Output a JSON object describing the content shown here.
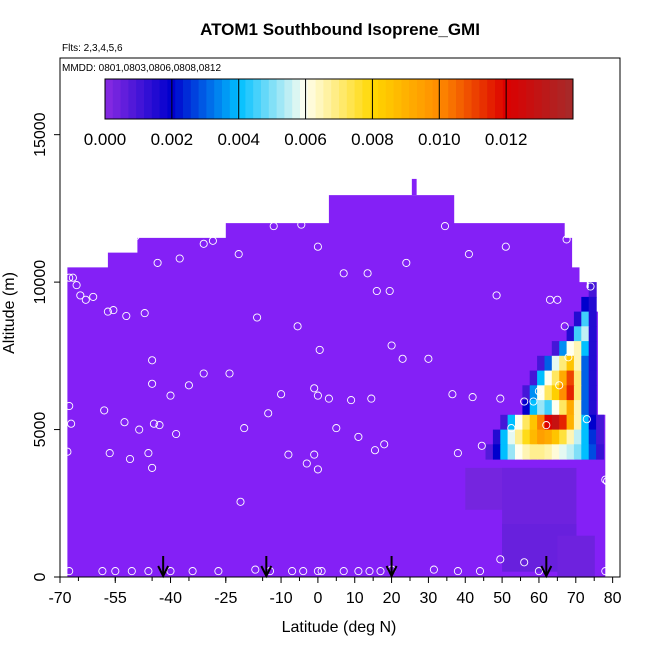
{
  "chart_data": {
    "type": "heatmap",
    "title": "ATOM1 Southbound Isoprene_GMI",
    "flights_note": "Flts: 2,3,4,5,6",
    "dates_note": "MMDD: 0801,0803,0806,0808,0812",
    "xlabel": "Latitude (deg N)",
    "ylabel": "Altitude (m)",
    "xlim": [
      -70,
      82
    ],
    "ylim": [
      0,
      17600
    ],
    "x_ticks": [
      -70,
      -55,
      -40,
      -25,
      -10,
      0,
      10,
      20,
      30,
      40,
      50,
      60,
      70,
      80
    ],
    "x_tick_labels": [
      "-70",
      "-55",
      "-40",
      "-25",
      "-10",
      "0",
      "10",
      "20",
      "30",
      "40",
      "50",
      "60",
      "70",
      "80"
    ],
    "y_ticks": [
      0,
      5000,
      10000,
      15000
    ],
    "y_tick_labels": [
      "0",
      "5000",
      "10000",
      "15000"
    ],
    "colorbar": {
      "min": 0,
      "max": 0.014,
      "ticks": [
        0,
        0.002,
        0.004,
        0.006,
        0.008,
        0.01,
        0.012
      ],
      "tick_labels": [
        "0.000",
        "0.002",
        "0.004",
        "0.006",
        "0.008",
        "0.010",
        "0.012"
      ],
      "colors": [
        "#8a2be2",
        "#0000cd",
        "#00bfff",
        "#fffff0",
        "#ffd700",
        "#ff8c00",
        "#dc0000",
        "#a52a2a"
      ]
    },
    "background_color": "#8420f6",
    "domain_envelope": [
      [
        -68,
        10500
      ],
      [
        -57,
        10500
      ],
      [
        -57,
        11000
      ],
      [
        -49,
        11000
      ],
      [
        -49,
        11500
      ],
      [
        -25,
        11500
      ],
      [
        -25,
        12000
      ],
      [
        3,
        12000
      ],
      [
        3,
        12950
      ],
      [
        37,
        12950
      ],
      [
        37,
        12000
      ],
      [
        67,
        12000
      ],
      [
        67,
        11500
      ],
      [
        69,
        11500
      ],
      [
        69,
        10500
      ],
      [
        71,
        10500
      ],
      [
        71,
        10000
      ],
      [
        73,
        10000
      ],
      [
        73,
        9800
      ],
      [
        74,
        9800
      ],
      [
        74,
        9000
      ],
      [
        76,
        9000
      ],
      [
        76,
        5500
      ],
      [
        78,
        5500
      ],
      [
        78,
        0
      ],
      [
        -68,
        0
      ]
    ],
    "plume_cells": [
      {
        "x": 74.5,
        "y": 9750,
        "v": 0.001
      },
      {
        "x": 72.5,
        "y": 9250,
        "v": 0.002
      },
      {
        "x": 74.5,
        "y": 9250,
        "v": 0.0015
      },
      {
        "x": 70.5,
        "y": 8750,
        "v": 0.0015
      },
      {
        "x": 72.5,
        "y": 8750,
        "v": 0.0045
      },
      {
        "x": 74.5,
        "y": 8750,
        "v": 0.0015
      },
      {
        "x": 68.5,
        "y": 8250,
        "v": 0.0015
      },
      {
        "x": 70.5,
        "y": 8250,
        "v": 0.0045
      },
      {
        "x": 72.5,
        "y": 8250,
        "v": 0.0055
      },
      {
        "x": 74.5,
        "y": 8250,
        "v": 0.0015
      },
      {
        "x": 64.5,
        "y": 7750,
        "v": 0.001
      },
      {
        "x": 66.5,
        "y": 7750,
        "v": 0.0035
      },
      {
        "x": 68.5,
        "y": 7750,
        "v": 0.006
      },
      {
        "x": 70.5,
        "y": 7750,
        "v": 0.0065
      },
      {
        "x": 72.5,
        "y": 7750,
        "v": 0.004
      },
      {
        "x": 74.5,
        "y": 7750,
        "v": 0.0015
      },
      {
        "x": 60.5,
        "y": 7250,
        "v": 0.001
      },
      {
        "x": 62.5,
        "y": 7250,
        "v": 0.003
      },
      {
        "x": 64.5,
        "y": 7250,
        "v": 0.0058
      },
      {
        "x": 66.5,
        "y": 7250,
        "v": 0.007
      },
      {
        "x": 68.5,
        "y": 7250,
        "v": 0.0085
      },
      {
        "x": 70.5,
        "y": 7250,
        "v": 0.0065
      },
      {
        "x": 72.5,
        "y": 7250,
        "v": 0.003
      },
      {
        "x": 74.5,
        "y": 7250,
        "v": 0.0015
      },
      {
        "x": 58.5,
        "y": 6750,
        "v": 0.001
      },
      {
        "x": 60.5,
        "y": 6750,
        "v": 0.004
      },
      {
        "x": 62.5,
        "y": 6750,
        "v": 0.006
      },
      {
        "x": 64.5,
        "y": 6750,
        "v": 0.0072
      },
      {
        "x": 66.5,
        "y": 6750,
        "v": 0.0092
      },
      {
        "x": 68.5,
        "y": 6750,
        "v": 0.011
      },
      {
        "x": 70.5,
        "y": 6750,
        "v": 0.007
      },
      {
        "x": 72.5,
        "y": 6750,
        "v": 0.003
      },
      {
        "x": 74.5,
        "y": 6750,
        "v": 0.0015
      },
      {
        "x": 56.5,
        "y": 6250,
        "v": 0.001
      },
      {
        "x": 58.5,
        "y": 6250,
        "v": 0.0035
      },
      {
        "x": 60.5,
        "y": 6250,
        "v": 0.006
      },
      {
        "x": 62.5,
        "y": 6250,
        "v": 0.0072
      },
      {
        "x": 64.5,
        "y": 6250,
        "v": 0.0082
      },
      {
        "x": 66.5,
        "y": 6250,
        "v": 0.01
      },
      {
        "x": 68.5,
        "y": 6250,
        "v": 0.0115
      },
      {
        "x": 70.5,
        "y": 6250,
        "v": 0.007
      },
      {
        "x": 72.5,
        "y": 6250,
        "v": 0.003
      },
      {
        "x": 74.5,
        "y": 6250,
        "v": 0.0015
      },
      {
        "x": 56.5,
        "y": 5750,
        "v": 0.002
      },
      {
        "x": 58.5,
        "y": 5750,
        "v": 0.004
      },
      {
        "x": 60.5,
        "y": 5750,
        "v": 0.0052
      },
      {
        "x": 62.5,
        "y": 5750,
        "v": 0.0045
      },
      {
        "x": 64.5,
        "y": 5750,
        "v": 0.006
      },
      {
        "x": 66.5,
        "y": 5750,
        "v": 0.0072
      },
      {
        "x": 68.5,
        "y": 5750,
        "v": 0.0092
      },
      {
        "x": 70.5,
        "y": 5750,
        "v": 0.0065
      },
      {
        "x": 72.5,
        "y": 5750,
        "v": 0.003
      },
      {
        "x": 74.5,
        "y": 5750,
        "v": 0.0015
      },
      {
        "x": 50.5,
        "y": 5250,
        "v": 0.001
      },
      {
        "x": 52.5,
        "y": 5250,
        "v": 0.004
      },
      {
        "x": 54.5,
        "y": 5250,
        "v": 0.006
      },
      {
        "x": 56.5,
        "y": 5250,
        "v": 0.0072
      },
      {
        "x": 58.5,
        "y": 5250,
        "v": 0.0085
      },
      {
        "x": 60.5,
        "y": 5250,
        "v": 0.0102
      },
      {
        "x": 62.5,
        "y": 5250,
        "v": 0.012
      },
      {
        "x": 64.5,
        "y": 5250,
        "v": 0.0128
      },
      {
        "x": 66.5,
        "y": 5250,
        "v": 0.0115
      },
      {
        "x": 68.5,
        "y": 5250,
        "v": 0.009
      },
      {
        "x": 70.5,
        "y": 5250,
        "v": 0.0065
      },
      {
        "x": 72.5,
        "y": 5250,
        "v": 0.004
      },
      {
        "x": 74.5,
        "y": 5250,
        "v": 0.002
      },
      {
        "x": 76.5,
        "y": 5250,
        "v": 0.001
      },
      {
        "x": 48.5,
        "y": 4750,
        "v": 0.0015
      },
      {
        "x": 50.5,
        "y": 4750,
        "v": 0.004
      },
      {
        "x": 52.5,
        "y": 4750,
        "v": 0.0058
      },
      {
        "x": 54.5,
        "y": 4750,
        "v": 0.0068
      },
      {
        "x": 56.5,
        "y": 4750,
        "v": 0.0078
      },
      {
        "x": 58.5,
        "y": 4750,
        "v": 0.0088
      },
      {
        "x": 60.5,
        "y": 4750,
        "v": 0.0095
      },
      {
        "x": 62.5,
        "y": 4750,
        "v": 0.0092
      },
      {
        "x": 64.5,
        "y": 4750,
        "v": 0.0085
      },
      {
        "x": 66.5,
        "y": 4750,
        "v": 0.0075
      },
      {
        "x": 68.5,
        "y": 4750,
        "v": 0.0065
      },
      {
        "x": 70.5,
        "y": 4750,
        "v": 0.0055
      },
      {
        "x": 72.5,
        "y": 4750,
        "v": 0.004
      },
      {
        "x": 74.5,
        "y": 4750,
        "v": 0.0025
      },
      {
        "x": 76.5,
        "y": 4750,
        "v": 0.001
      },
      {
        "x": 46.5,
        "y": 4250,
        "v": 0.0008
      },
      {
        "x": 48.5,
        "y": 4250,
        "v": 0.002
      },
      {
        "x": 50.5,
        "y": 4250,
        "v": 0.004
      },
      {
        "x": 52.5,
        "y": 4250,
        "v": 0.0052
      },
      {
        "x": 54.5,
        "y": 4250,
        "v": 0.006
      },
      {
        "x": 56.5,
        "y": 4250,
        "v": 0.0065
      },
      {
        "x": 58.5,
        "y": 4250,
        "v": 0.0068
      },
      {
        "x": 60.5,
        "y": 4250,
        "v": 0.0068
      },
      {
        "x": 62.5,
        "y": 4250,
        "v": 0.0066
      },
      {
        "x": 64.5,
        "y": 4250,
        "v": 0.0062
      },
      {
        "x": 66.5,
        "y": 4250,
        "v": 0.0058
      },
      {
        "x": 68.5,
        "y": 4250,
        "v": 0.0055
      },
      {
        "x": 70.5,
        "y": 4250,
        "v": 0.005
      },
      {
        "x": 72.5,
        "y": 4250,
        "v": 0.004
      },
      {
        "x": 74.5,
        "y": 4250,
        "v": 0.0028
      },
      {
        "x": 76.5,
        "y": 4250,
        "v": 0.0012
      },
      {
        "x": 50,
        "y": 3000,
        "v": 0.0003,
        "w": 20,
        "h": 1400
      },
      {
        "x": 60,
        "y": 2200,
        "v": 0.0004,
        "w": 20,
        "h": 3000
      },
      {
        "x": 60,
        "y": 1000,
        "v": 0.0005,
        "w": 20,
        "h": 1600
      },
      {
        "x": 70,
        "y": 700,
        "v": 0.0004,
        "w": 10,
        "h": 1400
      }
    ],
    "flight_points": [
      [
        -67.5,
        10150
      ],
      [
        -66.5,
        10150
      ],
      [
        -65.5,
        9900
      ],
      [
        -64.5,
        9550
      ],
      [
        -63,
        9400
      ],
      [
        -61,
        9500
      ],
      [
        -57,
        9000
      ],
      [
        -55.5,
        9050
      ],
      [
        -52,
        8850
      ],
      [
        -47,
        8950
      ],
      [
        -49.5,
        11550
      ],
      [
        -43.5,
        10650
      ],
      [
        -37.5,
        10800
      ],
      [
        -31,
        11300
      ],
      [
        -28.5,
        11400
      ],
      [
        -21.5,
        10950
      ],
      [
        -12,
        11900
      ],
      [
        -4.5,
        11950
      ],
      [
        0,
        11200
      ],
      [
        7,
        10300
      ],
      [
        13.5,
        10300
      ],
      [
        16,
        9700
      ],
      [
        19.5,
        9700
      ],
      [
        24,
        10650
      ],
      [
        34.5,
        11900
      ],
      [
        41,
        10950
      ],
      [
        51,
        11200
      ],
      [
        67.5,
        11450
      ],
      [
        74,
        9850
      ],
      [
        48.5,
        9550
      ],
      [
        63,
        9400
      ],
      [
        65,
        9400
      ],
      [
        67,
        8500
      ],
      [
        -67.5,
        5800
      ],
      [
        -67,
        5200
      ],
      [
        -58,
        5650
      ],
      [
        -56.5,
        4200
      ],
      [
        -52.5,
        5250
      ],
      [
        -51,
        4000
      ],
      [
        -48.5,
        5000
      ],
      [
        -46,
        4200
      ],
      [
        -44.5,
        5200
      ],
      [
        -43,
        5150
      ],
      [
        -40,
        6150
      ],
      [
        -38.5,
        4850
      ],
      [
        -35,
        6500
      ],
      [
        -31,
        6900
      ],
      [
        -24,
        6900
      ],
      [
        -20,
        5050
      ],
      [
        -16.5,
        8800
      ],
      [
        -10,
        6200
      ],
      [
        -5.5,
        8500
      ],
      [
        -13.5,
        5550
      ],
      [
        -8,
        4150
      ],
      [
        -3,
        3850
      ],
      [
        -1,
        6400
      ],
      [
        0.5,
        7700
      ],
      [
        0,
        6150
      ],
      [
        3,
        6050
      ],
      [
        5,
        5050
      ],
      [
        9,
        6000
      ],
      [
        11,
        4750
      ],
      [
        14.5,
        6050
      ],
      [
        15.5,
        4300
      ],
      [
        18,
        4500
      ],
      [
        20,
        7850
      ],
      [
        23,
        7400
      ],
      [
        30,
        7400
      ],
      [
        36.5,
        6200
      ],
      [
        38,
        4200
      ],
      [
        42,
        6100
      ],
      [
        44.5,
        4450
      ],
      [
        49.5,
        6050
      ],
      [
        52.5,
        5050
      ],
      [
        56,
        5950
      ],
      [
        58.5,
        5950
      ],
      [
        60,
        6300
      ],
      [
        62,
        5150
      ],
      [
        65.5,
        6500
      ],
      [
        68,
        7450
      ],
      [
        73,
        5350
      ],
      [
        78,
        3300
      ],
      [
        78.5,
        3250
      ],
      [
        -68,
        4250
      ],
      [
        -45,
        6550
      ],
      [
        -45,
        3700
      ],
      [
        -21,
        2550
      ],
      [
        -1,
        4150
      ],
      [
        0,
        3650
      ],
      [
        -45,
        7350
      ],
      [
        -67.5,
        200
      ],
      [
        -58.5,
        200
      ],
      [
        -55,
        200
      ],
      [
        -50.5,
        200
      ],
      [
        -46,
        200
      ],
      [
        -40,
        200
      ],
      [
        -34,
        200
      ],
      [
        -27,
        200
      ],
      [
        -17,
        250
      ],
      [
        -13,
        200
      ],
      [
        -7,
        200
      ],
      [
        -4,
        200
      ],
      [
        0,
        200
      ],
      [
        1,
        200
      ],
      [
        7,
        200
      ],
      [
        11,
        200
      ],
      [
        14,
        200
      ],
      [
        17,
        200
      ],
      [
        20,
        250
      ],
      [
        31.5,
        250
      ],
      [
        38,
        200
      ],
      [
        44,
        200
      ],
      [
        49.5,
        600
      ],
      [
        56,
        500
      ],
      [
        60,
        200
      ],
      [
        78,
        200
      ]
    ],
    "ground_arrows_lat": [
      -42,
      -14,
      20,
      62
    ]
  }
}
